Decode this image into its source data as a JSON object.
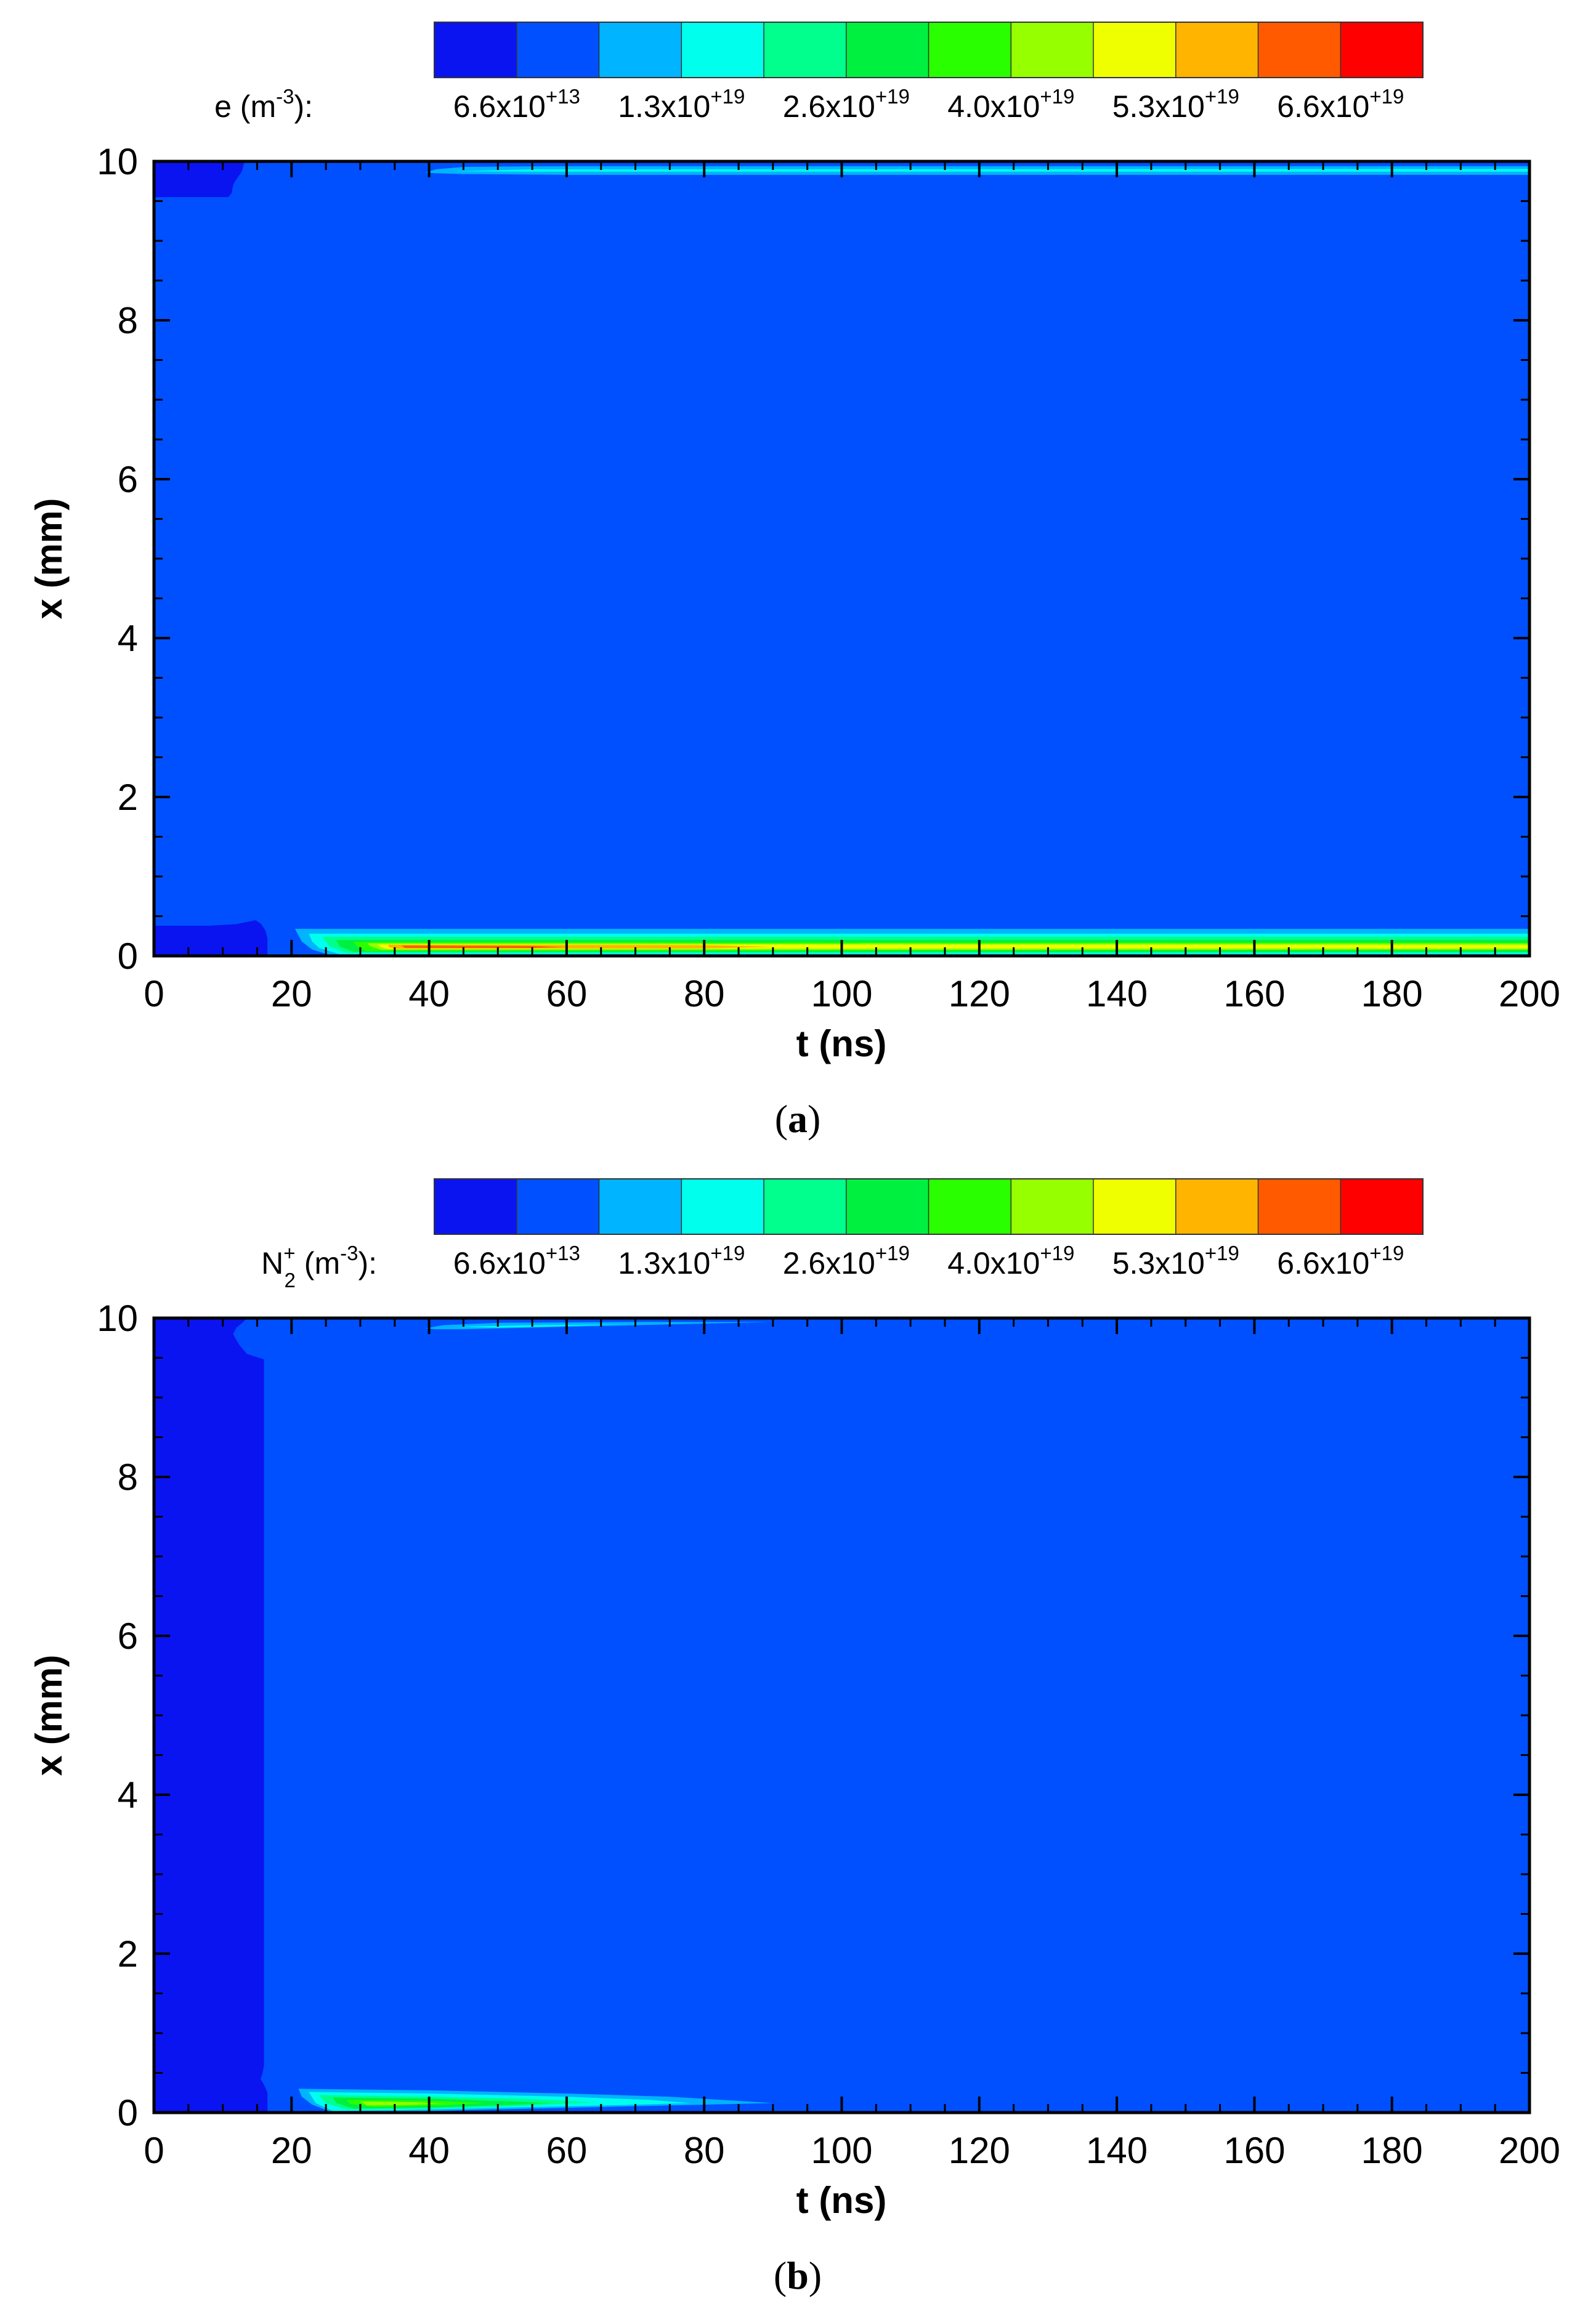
{
  "chart_data": [
    {
      "type": "heatmap",
      "panel_label": "(a)",
      "panel_letter": "a",
      "colorbar": {
        "label_main": "e (m",
        "label_exp": "-3",
        "label_close": "):",
        "colors": [
          "#0a14f0",
          "#0050ff",
          "#00b4ff",
          "#00ffec",
          "#00ff8c",
          "#00f040",
          "#2aff00",
          "#96ff00",
          "#f0ff00",
          "#ffb400",
          "#ff5a00",
          "#ff0000"
        ],
        "tick_labels": [
          {
            "base": "6.6x10",
            "exp": "+13"
          },
          {
            "base": "1.3x10",
            "exp": "+19"
          },
          {
            "base": "2.6x10",
            "exp": "+19"
          },
          {
            "base": "4.0x10",
            "exp": "+19"
          },
          {
            "base": "5.3x10",
            "exp": "+19"
          },
          {
            "base": "6.6x10",
            "exp": "+19"
          }
        ]
      },
      "xlabel": "t (ns)",
      "ylabel": "x (mm)",
      "xlim": [
        0,
        200
      ],
      "ylim": [
        0,
        10
      ],
      "xticks": [
        0,
        20,
        40,
        60,
        80,
        100,
        120,
        140,
        160,
        180,
        200
      ],
      "yticks": [
        0,
        2,
        4,
        6,
        8,
        10
      ],
      "background_level": 1,
      "regions": [
        {
          "level": 0,
          "points": [
            [
              0,
              9.55
            ],
            [
              10.8,
              9.55
            ],
            [
              11.3,
              9.6
            ],
            [
              11.5,
              9.7
            ],
            [
              11.8,
              9.75
            ],
            [
              12.2,
              9.8
            ],
            [
              12.6,
              9.85
            ],
            [
              12.8,
              9.88
            ],
            [
              13.0,
              9.95
            ],
            [
              13.2,
              10.0
            ],
            [
              0,
              10.0
            ]
          ]
        },
        {
          "level": 0,
          "points": [
            [
              0,
              0
            ],
            [
              16.5,
              0
            ],
            [
              16.5,
              0.22
            ],
            [
              16.2,
              0.32
            ],
            [
              15.6,
              0.4
            ],
            [
              14.8,
              0.45
            ],
            [
              12.0,
              0.4
            ],
            [
              8.0,
              0.38
            ],
            [
              0,
              0.38
            ]
          ]
        },
        {
          "level": 2,
          "points": [
            [
              20.5,
              0.34
            ],
            [
              200,
              0.34
            ],
            [
              200,
              0.0
            ],
            [
              26,
              0.0
            ],
            [
              23,
              0.08
            ],
            [
              21.5,
              0.18
            ]
          ]
        },
        {
          "level": 3,
          "points": [
            [
              22.5,
              0.28
            ],
            [
              200,
              0.28
            ],
            [
              200,
              0.02
            ],
            [
              27,
              0.02
            ],
            [
              24,
              0.1
            ],
            [
              23,
              0.18
            ]
          ]
        },
        {
          "level": 4,
          "points": [
            [
              24.5,
              0.24
            ],
            [
              200,
              0.24
            ],
            [
              200,
              0.04
            ],
            [
              28,
              0.04
            ],
            [
              25.5,
              0.12
            ]
          ]
        },
        {
          "level": 5,
          "points": [
            [
              26.5,
              0.2
            ],
            [
              200,
              0.2
            ],
            [
              200,
              0.05
            ],
            [
              29,
              0.05
            ],
            [
              27,
              0.12
            ]
          ]
        },
        {
          "level": 6,
          "points": [
            [
              29,
              0.175
            ],
            [
              200,
              0.17
            ],
            [
              200,
              0.07
            ],
            [
              31,
              0.06
            ],
            [
              29.5,
              0.12
            ]
          ]
        },
        {
          "level": 7,
          "points": [
            [
              31,
              0.16
            ],
            [
              200,
              0.155
            ],
            [
              200,
              0.08
            ],
            [
              33,
              0.075
            ],
            [
              31.5,
              0.12
            ]
          ]
        },
        {
          "level": 8,
          "points": [
            [
              32.5,
              0.145
            ],
            [
              140,
              0.14
            ],
            [
              200,
              0.135
            ],
            [
              200,
              0.095
            ],
            [
              140,
              0.095
            ],
            [
              34,
              0.085
            ],
            [
              33,
              0.11
            ]
          ]
        },
        {
          "level": 9,
          "points": [
            [
              34,
              0.14
            ],
            [
              80,
              0.135
            ],
            [
              90,
              0.115
            ],
            [
              80,
              0.095
            ],
            [
              35,
              0.09
            ],
            [
              34.2,
              0.11
            ]
          ]
        },
        {
          "level": 10,
          "points": [
            [
              36,
              0.13
            ],
            [
              55,
              0.125
            ],
            [
              60,
              0.11
            ],
            [
              55,
              0.1
            ],
            [
              36.5,
              0.1
            ]
          ]
        },
        {
          "level": 2,
          "points": [
            [
              39.5,
              9.86
            ],
            [
              41,
              9.9
            ],
            [
              45,
              9.93
            ],
            [
              60,
              9.94
            ],
            [
              200,
              9.94
            ],
            [
              200,
              9.83
            ],
            [
              60,
              9.83
            ],
            [
              45,
              9.84
            ],
            [
              41,
              9.85
            ]
          ]
        },
        {
          "level": 3,
          "points": [
            [
              44,
              9.875
            ],
            [
              55,
              9.9
            ],
            [
              200,
              9.905
            ],
            [
              200,
              9.87
            ],
            [
              55,
              9.87
            ]
          ]
        }
      ]
    },
    {
      "type": "heatmap",
      "panel_label": "(b)",
      "panel_letter": "b",
      "colorbar": {
        "label_main": "N",
        "label_sup": "+",
        "label_sub": "2",
        "label_unit": " (m",
        "label_exp": "-3",
        "label_close": "):",
        "colors": [
          "#0a14f0",
          "#0050ff",
          "#00b4ff",
          "#00ffec",
          "#00ff8c",
          "#00f040",
          "#2aff00",
          "#96ff00",
          "#f0ff00",
          "#ffb400",
          "#ff5a00",
          "#ff0000"
        ],
        "tick_labels": [
          {
            "base": "6.6x10",
            "exp": "+13"
          },
          {
            "base": "1.3x10",
            "exp": "+19"
          },
          {
            "base": "2.6x10",
            "exp": "+19"
          },
          {
            "base": "4.0x10",
            "exp": "+19"
          },
          {
            "base": "5.3x10",
            "exp": "+19"
          },
          {
            "base": "6.6x10",
            "exp": "+19"
          }
        ]
      },
      "xlabel": "t (ns)",
      "ylabel": "x (mm)",
      "xlim": [
        0,
        200
      ],
      "ylim": [
        0,
        10
      ],
      "xticks": [
        0,
        20,
        40,
        60,
        80,
        100,
        120,
        140,
        160,
        180,
        200
      ],
      "yticks": [
        0,
        2,
        4,
        6,
        8,
        10
      ],
      "background_level": 1,
      "regions": [
        {
          "level": 0,
          "points": [
            [
              0,
              0
            ],
            [
              16.5,
              0
            ],
            [
              16.5,
              0.25
            ],
            [
              16.0,
              0.35
            ],
            [
              15.5,
              0.42
            ],
            [
              15.8,
              0.5
            ],
            [
              16.0,
              0.6
            ],
            [
              16.0,
              9.48
            ],
            [
              14.5,
              9.52
            ],
            [
              13.5,
              9.55
            ],
            [
              12.5,
              9.65
            ],
            [
              12.0,
              9.72
            ],
            [
              11.5,
              9.8
            ],
            [
              12.0,
              9.88
            ],
            [
              13.0,
              9.95
            ],
            [
              13.5,
              10.0
            ],
            [
              0,
              10.0
            ]
          ]
        },
        {
          "level": 2,
          "points": [
            [
              21,
              0.3
            ],
            [
              40,
              0.28
            ],
            [
              60,
              0.24
            ],
            [
              75,
              0.2
            ],
            [
              90,
              0.12
            ],
            [
              80,
              0.1
            ],
            [
              60,
              0.06
            ],
            [
              40,
              0.02
            ],
            [
              26,
              0.0
            ],
            [
              23,
              0.1
            ],
            [
              21.5,
              0.2
            ]
          ]
        },
        {
          "level": 3,
          "points": [
            [
              22.5,
              0.26
            ],
            [
              40,
              0.24
            ],
            [
              60,
              0.2
            ],
            [
              72,
              0.16
            ],
            [
              78,
              0.12
            ],
            [
              70,
              0.1
            ],
            [
              50,
              0.06
            ],
            [
              35,
              0.03
            ],
            [
              26,
              0.02
            ],
            [
              23.5,
              0.12
            ]
          ]
        },
        {
          "level": 4,
          "points": [
            [
              24,
              0.22
            ],
            [
              40,
              0.2
            ],
            [
              55,
              0.17
            ],
            [
              64,
              0.13
            ],
            [
              55,
              0.09
            ],
            [
              40,
              0.05
            ],
            [
              28,
              0.04
            ],
            [
              25,
              0.12
            ]
          ]
        },
        {
          "level": 5,
          "points": [
            [
              26,
              0.19
            ],
            [
              40,
              0.175
            ],
            [
              52,
              0.14
            ],
            [
              58,
              0.12
            ],
            [
              50,
              0.09
            ],
            [
              38,
              0.06
            ],
            [
              29,
              0.05
            ],
            [
              26.5,
              0.12
            ]
          ]
        },
        {
          "level": 6,
          "points": [
            [
              28,
              0.16
            ],
            [
              40,
              0.15
            ],
            [
              48,
              0.12
            ],
            [
              42,
              0.09
            ],
            [
              32,
              0.07
            ],
            [
              28.5,
              0.11
            ]
          ]
        },
        {
          "level": 7,
          "points": [
            [
              30,
              0.14
            ],
            [
              38,
              0.13
            ],
            [
              42,
              0.115
            ],
            [
              37,
              0.095
            ],
            [
              31,
              0.09
            ]
          ]
        },
        {
          "level": 2,
          "points": [
            [
              39.5,
              9.87
            ],
            [
              42,
              9.91
            ],
            [
              50,
              9.94
            ],
            [
              70,
              9.95
            ],
            [
              90,
              9.95
            ],
            [
              75,
              9.92
            ],
            [
              55,
              9.88
            ],
            [
              45,
              9.86
            ],
            [
              41,
              9.86
            ]
          ]
        },
        {
          "level": 3,
          "points": [
            [
              44,
              9.89
            ],
            [
              55,
              9.91
            ],
            [
              68,
              9.92
            ],
            [
              58,
              9.895
            ],
            [
              50,
              9.88
            ]
          ]
        }
      ]
    }
  ]
}
